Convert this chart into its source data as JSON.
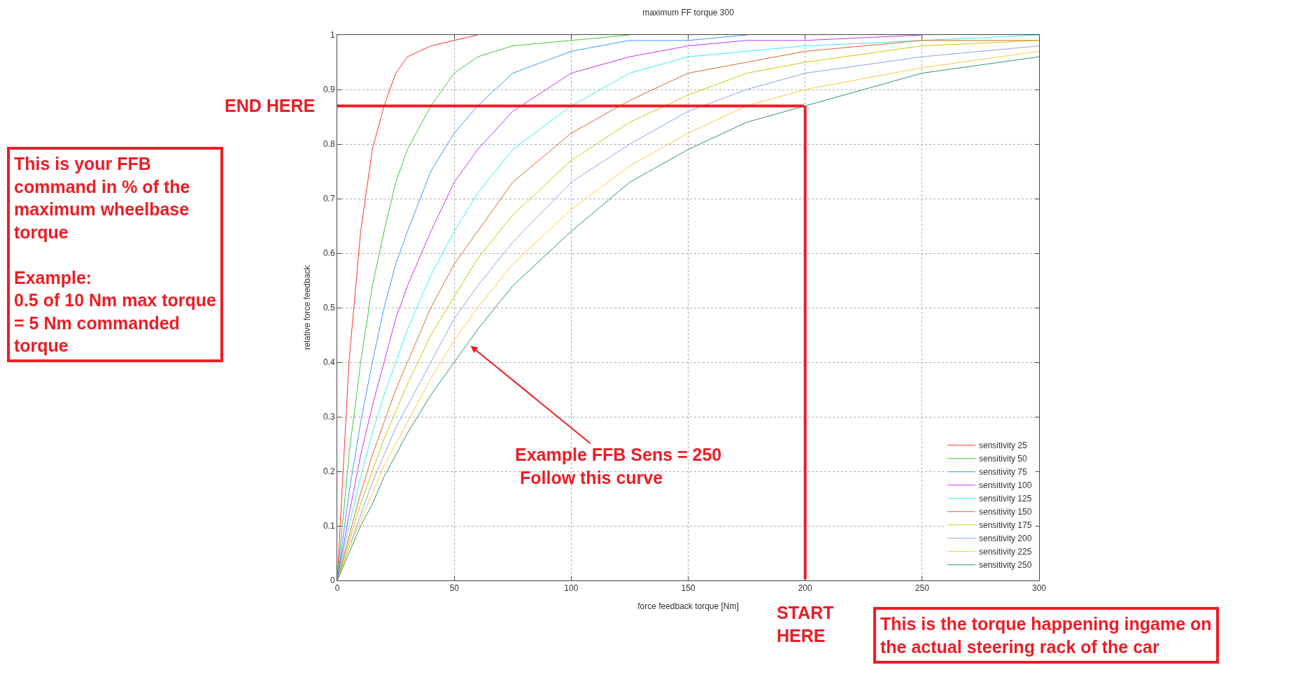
{
  "chart_data": {
    "type": "line",
    "title": "maximum FF torque 300",
    "xlabel": "force feedback torque [Nm]",
    "ylabel": "relative force feedback",
    "x": [
      0,
      5,
      10,
      15,
      20,
      25,
      30,
      40,
      50,
      60,
      75,
      100,
      125,
      150,
      175,
      200,
      250,
      300
    ],
    "series": [
      {
        "name": "sensitivity 25",
        "color": "#ff3030",
        "values": [
          0,
          0.4,
          0.64,
          0.79,
          0.87,
          0.93,
          0.96,
          0.98,
          0.99,
          1,
          null,
          null,
          null,
          null,
          null,
          null,
          null,
          null
        ]
      },
      {
        "name": "sensitivity 50",
        "color": "#3cc83c",
        "values": [
          0,
          0.23,
          0.4,
          0.54,
          0.64,
          0.73,
          0.79,
          0.87,
          0.93,
          0.96,
          0.98,
          0.99,
          1,
          null,
          null,
          null,
          null,
          null
        ]
      },
      {
        "name": "sensitivity 75",
        "color": "#3c96ff",
        "values": [
          0,
          0.16,
          0.29,
          0.4,
          0.5,
          0.58,
          0.64,
          0.75,
          0.82,
          0.87,
          0.93,
          0.97,
          0.99,
          0.99,
          1,
          null,
          null,
          null
        ]
      },
      {
        "name": "sensitivity 100",
        "color": "#c832ff",
        "values": [
          0,
          0.12,
          0.23,
          0.32,
          0.4,
          0.48,
          0.54,
          0.64,
          0.73,
          0.79,
          0.86,
          0.93,
          0.96,
          0.98,
          0.99,
          0.99,
          1,
          null
        ]
      },
      {
        "name": "sensitivity 125",
        "color": "#32f0f0",
        "values": [
          0,
          0.1,
          0.19,
          0.27,
          0.34,
          0.4,
          0.46,
          0.56,
          0.64,
          0.71,
          0.79,
          0.87,
          0.93,
          0.96,
          0.97,
          0.98,
          0.99,
          1
        ]
      },
      {
        "name": "sensitivity 150",
        "color": "#e0642a",
        "values": [
          0,
          0.08,
          0.16,
          0.23,
          0.29,
          0.35,
          0.4,
          0.5,
          0.58,
          0.64,
          0.73,
          0.82,
          0.88,
          0.93,
          0.95,
          0.97,
          0.99,
          0.99
        ]
      },
      {
        "name": "sensitivity 175",
        "color": "#c8c800",
        "values": [
          0,
          0.07,
          0.14,
          0.2,
          0.26,
          0.31,
          0.36,
          0.45,
          0.52,
          0.59,
          0.67,
          0.77,
          0.84,
          0.89,
          0.93,
          0.95,
          0.98,
          0.99
        ]
      },
      {
        "name": "sensitivity 200",
        "color": "#8ca0f0",
        "values": [
          0,
          0.06,
          0.12,
          0.18,
          0.23,
          0.28,
          0.32,
          0.4,
          0.48,
          0.54,
          0.62,
          0.73,
          0.8,
          0.86,
          0.9,
          0.93,
          0.96,
          0.98
        ]
      },
      {
        "name": "sensitivity 225",
        "color": "#ffc83c",
        "values": [
          0,
          0.06,
          0.11,
          0.16,
          0.21,
          0.25,
          0.29,
          0.37,
          0.44,
          0.5,
          0.58,
          0.68,
          0.76,
          0.82,
          0.87,
          0.9,
          0.94,
          0.97
        ]
      },
      {
        "name": "sensitivity 250",
        "color": "#2d9664",
        "values": [
          0,
          0.05,
          0.1,
          0.14,
          0.19,
          0.23,
          0.27,
          0.34,
          0.4,
          0.46,
          0.54,
          0.64,
          0.73,
          0.79,
          0.84,
          0.87,
          0.93,
          0.96
        ]
      }
    ],
    "xlim": [
      0,
      300
    ],
    "xticks": [
      0,
      50,
      100,
      150,
      200,
      250,
      300
    ],
    "ylim": [
      0,
      1
    ],
    "yticks": [
      0,
      0.1,
      0.2,
      0.3,
      0.4,
      0.5,
      0.6,
      0.7,
      0.8,
      0.9,
      1
    ],
    "grid": true,
    "legend": "bottom right",
    "marker": "none",
    "line_style": "solid",
    "ref_lines": [
      {
        "axis": "x",
        "value": 200,
        "label": "START\nHERE",
        "color": "#ee1c25"
      },
      {
        "axis": "y",
        "value": 0.87,
        "label": "END HERE",
        "color": "#ee1c25"
      }
    ],
    "annotations": [
      {
        "text": "Example FFB Sens = 250\n Follow this curve",
        "x": 57,
        "y": 0.43
      },
      "This is your FFB\ncommand in % of the\nmaximum wheelbase\ntorque\n\nExample:\n0.5 of 10 Nm max torque\n= 5 Nm commanded\ntorque",
      "This is the torque happening ingame on\nthe actual steering rack of the car"
    ]
  }
}
